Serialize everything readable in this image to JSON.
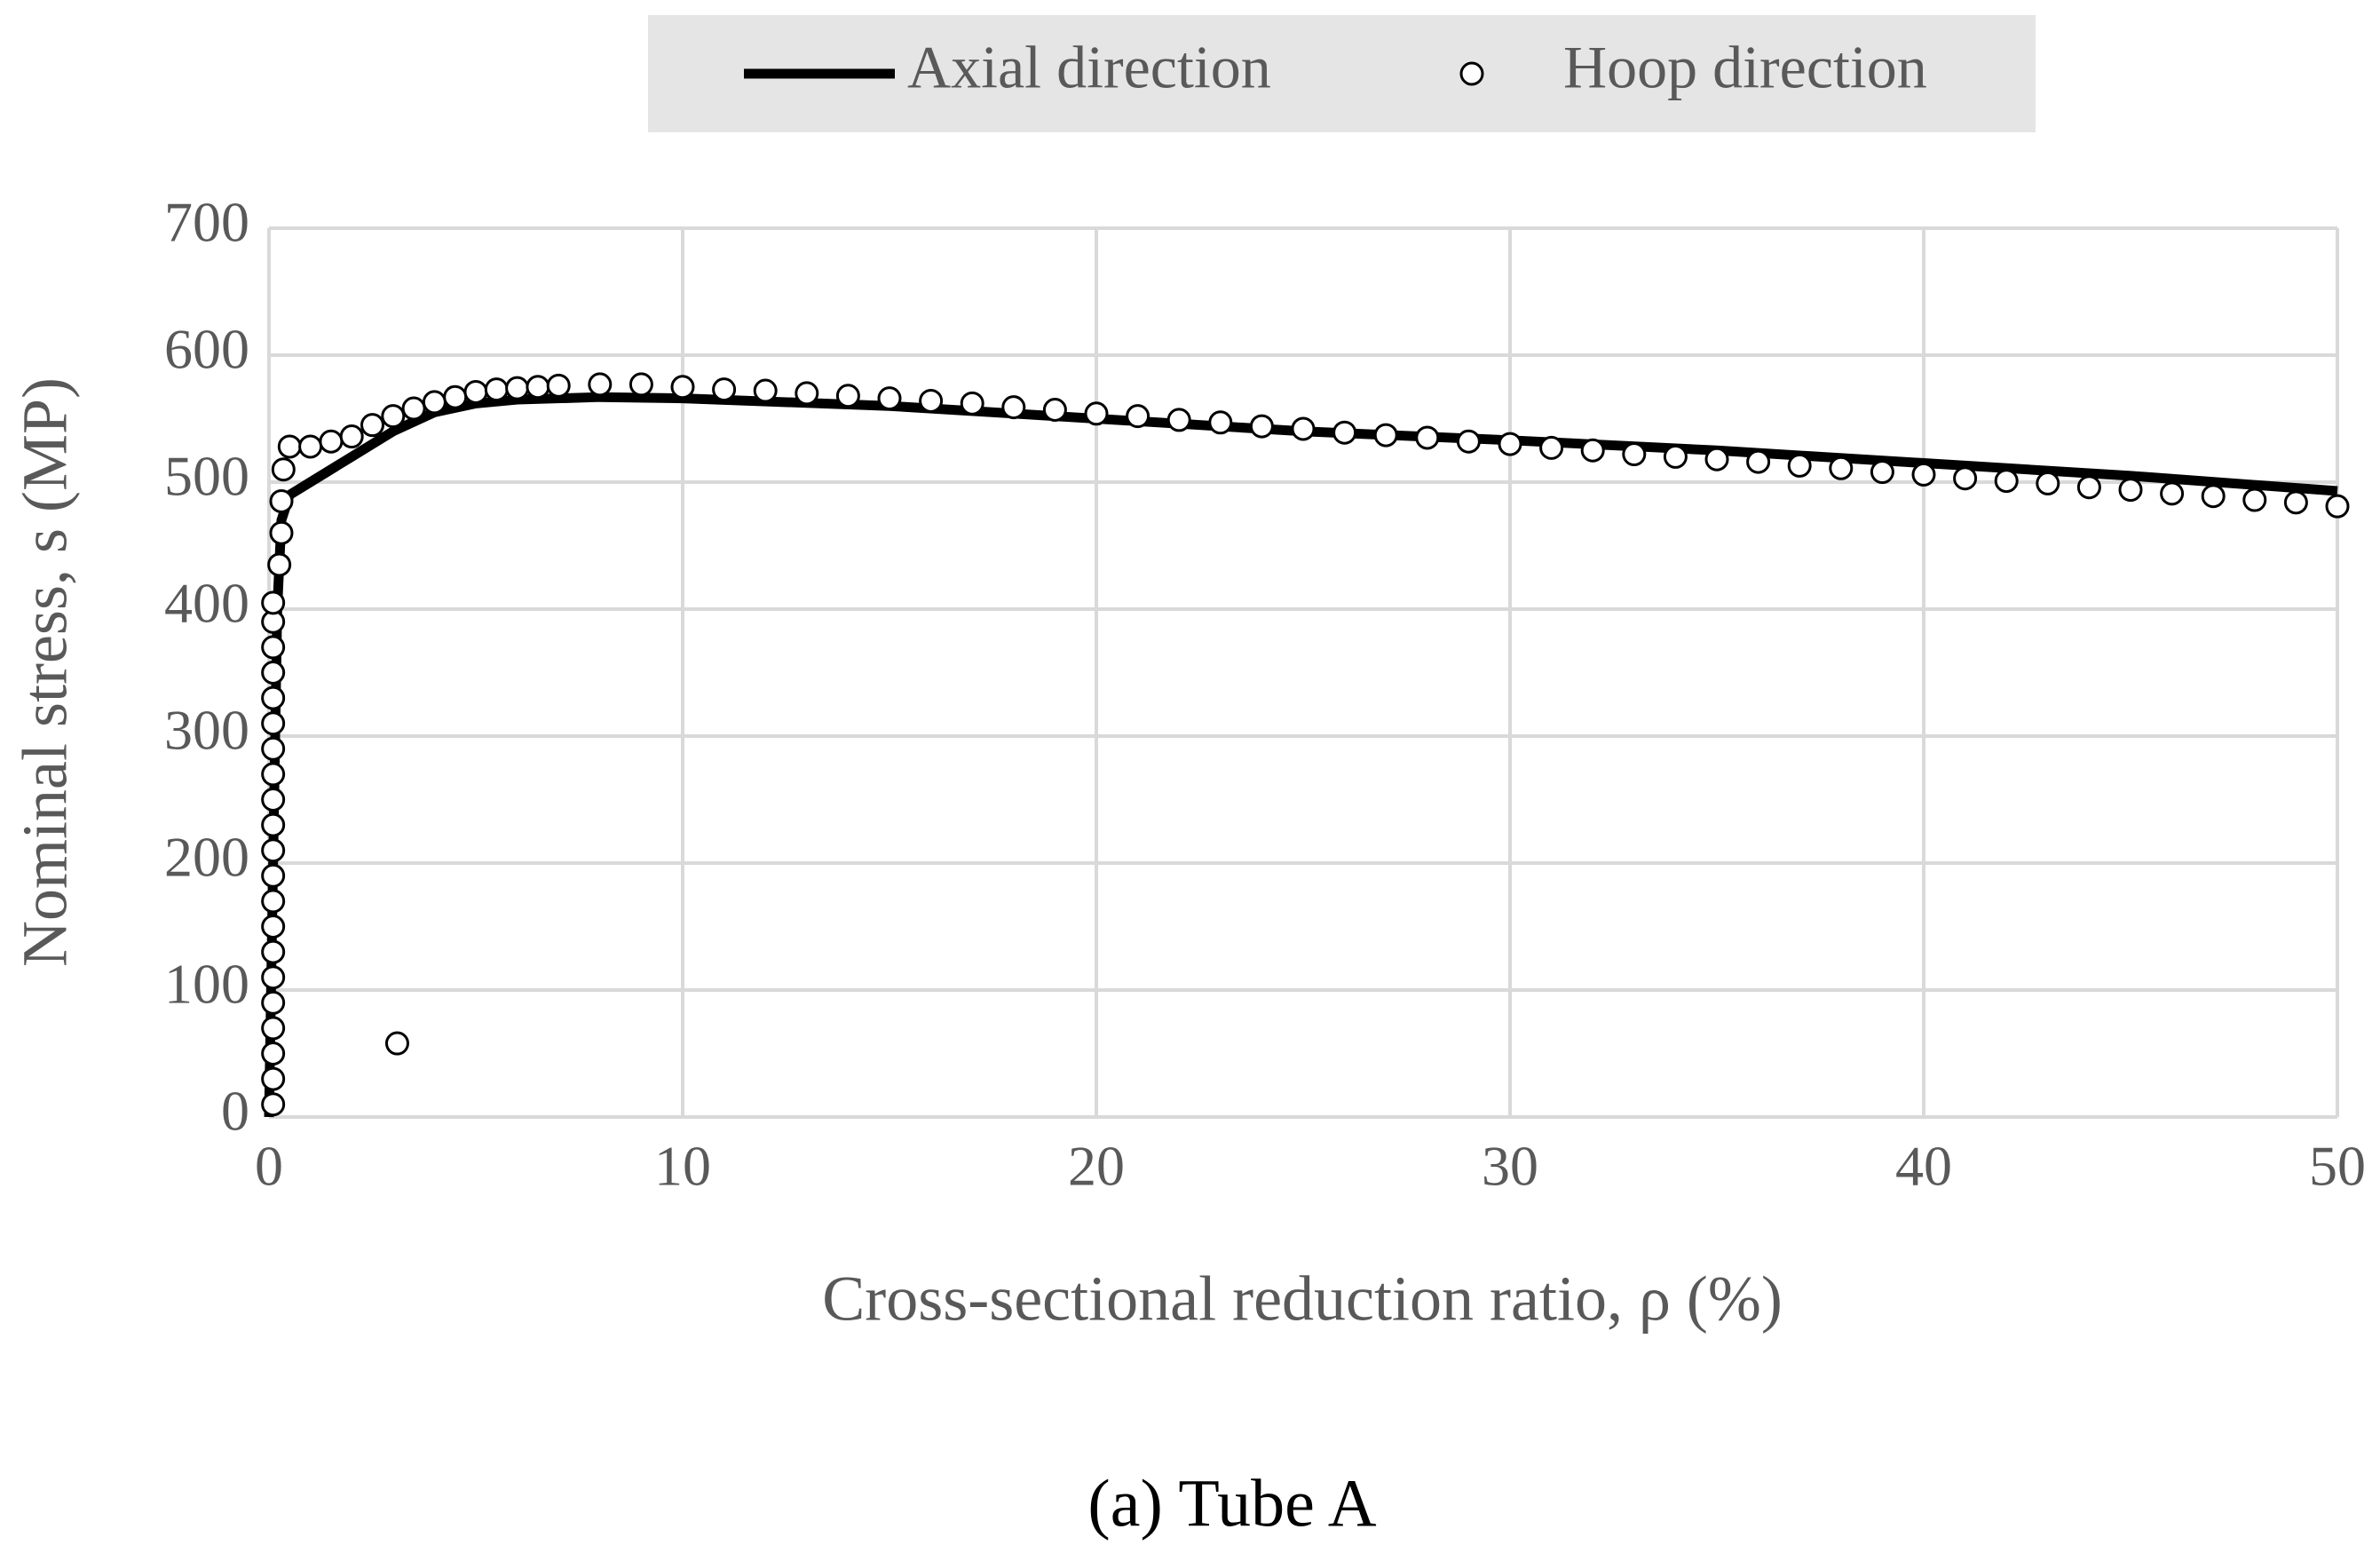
{
  "chart_data": {
    "type": "line",
    "title": "(a) Tube A",
    "x_label": "Cross-sectional reduction ratio, ρ (%)",
    "y_label": "Nominal stress, s (MP)",
    "xlim": [
      0,
      50
    ],
    "xticks": [
      0,
      10,
      20,
      30,
      40,
      50
    ],
    "ylim": [
      0,
      700
    ],
    "yticks": [
      0,
      100,
      200,
      300,
      400,
      500,
      600,
      700
    ],
    "grid": true,
    "legend": "top",
    "series": [
      {
        "name": "Axial direction",
        "type": "line",
        "color": "#000000",
        "x": [
          0,
          0.1,
          0.2,
          0.3,
          0.5,
          1,
          2,
          3,
          4,
          5,
          6,
          8,
          10,
          15,
          20,
          25,
          30,
          35,
          40,
          45,
          50
        ],
        "values": [
          0,
          200,
          400,
          470,
          490,
          500,
          520,
          540,
          555,
          562,
          565,
          567,
          566,
          560,
          550,
          540,
          533,
          525,
          515,
          505,
          493
        ]
      },
      {
        "name": "Hoop direction",
        "type": "scatter",
        "color": "#ffffff",
        "x": [
          0.1,
          0.1,
          0.1,
          0.1,
          0.1,
          0.1,
          0.1,
          0.1,
          0.1,
          0.1,
          0.1,
          0.1,
          0.1,
          0.1,
          0.1,
          0.1,
          0.1,
          0.1,
          0.1,
          0.1,
          0.1,
          0.25,
          0.3,
          0.3,
          0.35,
          0.5,
          1,
          1.5,
          2,
          2.5,
          3,
          3.5,
          4,
          4.5,
          5,
          5.5,
          6,
          6.5,
          7,
          8,
          9,
          10,
          11,
          12,
          13,
          14,
          15,
          16,
          17,
          18,
          19,
          20,
          21,
          22,
          23,
          24,
          25,
          26,
          27,
          28,
          29,
          30,
          31,
          32,
          33,
          34,
          35,
          36,
          37,
          38,
          39,
          40,
          41,
          42,
          43,
          44,
          45,
          46,
          47,
          48,
          49,
          50,
          3.1
        ],
        "values": [
          10,
          30,
          50,
          70,
          90,
          110,
          130,
          150,
          170,
          190,
          210,
          230,
          250,
          270,
          290,
          310,
          330,
          350,
          370,
          390,
          405,
          435,
          460,
          485,
          510,
          528,
          528,
          532,
          536,
          545,
          552,
          558,
          563,
          567,
          571,
          573,
          574,
          575,
          576,
          577,
          577,
          575,
          573,
          572,
          570,
          568,
          566,
          564,
          562,
          559,
          557,
          554,
          552,
          549,
          547,
          544,
          542,
          539,
          537,
          535,
          532,
          530,
          527,
          525,
          522,
          520,
          518,
          516,
          513,
          511,
          508,
          506,
          503,
          501,
          499,
          496,
          494,
          491,
          489,
          486,
          484,
          481,
          58
        ]
      }
    ]
  }
}
